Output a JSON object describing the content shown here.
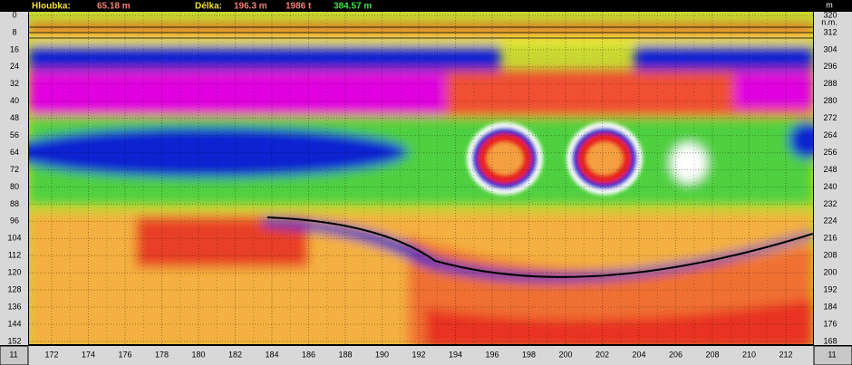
{
  "header": {
    "depth_label": "Hloubka:",
    "depth_value": "65.18 m",
    "length_label": "Délka:",
    "length_value": "196.3 m",
    "time_value": "1986 t",
    "altitude_value": "384.57 m"
  },
  "left_axis": {
    "unit": "m",
    "ticks": [
      "0",
      "8",
      "16",
      "24",
      "32",
      "40",
      "48",
      "56",
      "64",
      "72",
      "80",
      "88",
      "96",
      "104",
      "112",
      "120",
      "128",
      "136",
      "144",
      "152"
    ]
  },
  "right_axis": {
    "unit": "m",
    "unit_note": "n.m.",
    "ticks": [
      "320",
      "312",
      "304",
      "296",
      "288",
      "280",
      "272",
      "264",
      "256",
      "248",
      "240",
      "232",
      "224",
      "216",
      "208",
      "200",
      "192",
      "184",
      "176",
      "168"
    ]
  },
  "bottom_axis": {
    "left_marker": "11",
    "right_marker": "11",
    "ticks": [
      "172",
      "174",
      "176",
      "178",
      "180",
      "182",
      "184",
      "186",
      "188",
      "190",
      "192",
      "194",
      "196",
      "198",
      "200",
      "202",
      "204",
      "206",
      "208",
      "210",
      "212"
    ]
  }
}
